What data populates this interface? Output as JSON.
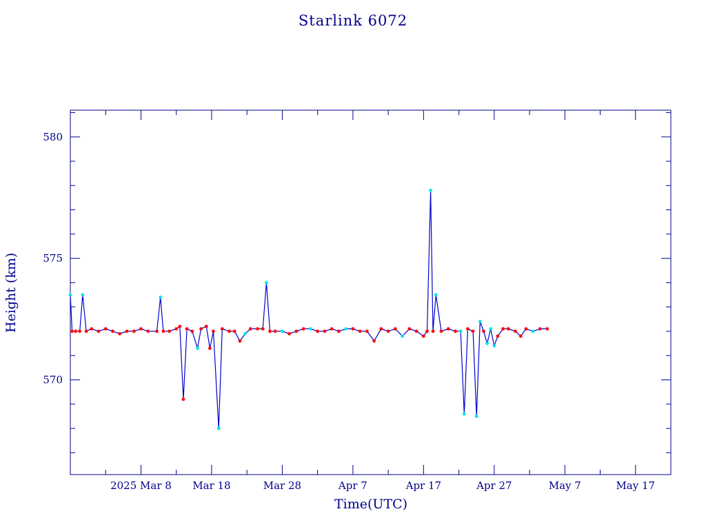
{
  "chart_data": {
    "type": "line",
    "title": "Starlink 6072",
    "xlabel": "Time(UTC)",
    "ylabel": "Height (km)",
    "x_tick_labels": [
      "2025 Mar  8",
      "Mar 18",
      "Mar 28",
      "Apr  7",
      "Apr 17",
      "Apr 27",
      "May  7",
      "May 17"
    ],
    "x_tick_dates": [
      "2025-03-08",
      "2025-03-18",
      "2025-03-28",
      "2025-04-07",
      "2025-04-17",
      "2025-04-27",
      "2025-05-07",
      "2025-05-17"
    ],
    "xlim": [
      "2025-02-26",
      "2025-05-22"
    ],
    "y_ticks": [
      570,
      575,
      580
    ],
    "ylim": [
      566.1,
      581.1
    ],
    "grid": false,
    "colors": {
      "axes": "#00008b",
      "line": "#0000cd",
      "marker_a": "#ff0000",
      "marker_b": "#00e5e5"
    },
    "series": [
      {
        "points": [
          [
            "2025-02-26T00:00",
            573.5,
            "b"
          ],
          [
            "2025-02-26T06:00",
            572.0,
            "a"
          ],
          [
            "2025-02-26T18:00",
            572.0,
            "a"
          ],
          [
            "2025-02-27T08:00",
            572.0,
            "a"
          ],
          [
            "2025-02-27T18:00",
            573.5,
            "b"
          ],
          [
            "2025-02-28T06:00",
            572.0,
            "a"
          ],
          [
            "2025-03-01T00:00",
            572.1,
            "a"
          ],
          [
            "2025-03-02T00:00",
            572.0,
            "a"
          ],
          [
            "2025-03-03T00:00",
            572.1,
            "a"
          ],
          [
            "2025-03-04T00:00",
            572.0,
            "a"
          ],
          [
            "2025-03-05T00:00",
            571.9,
            "a"
          ],
          [
            "2025-03-06T00:00",
            572.0,
            "a"
          ],
          [
            "2025-03-07T00:00",
            572.0,
            "a"
          ],
          [
            "2025-03-08T00:00",
            572.1,
            "a"
          ],
          [
            "2025-03-09T00:00",
            572.0,
            "a"
          ],
          [
            "2025-03-10T06:00",
            572.0,
            "a"
          ],
          [
            "2025-03-10T18:00",
            573.4,
            "b"
          ],
          [
            "2025-03-11T04:00",
            572.0,
            "a"
          ],
          [
            "2025-03-12T00:00",
            572.0,
            "a"
          ],
          [
            "2025-03-13T00:00",
            572.1,
            "a"
          ],
          [
            "2025-03-13T12:00",
            572.2,
            "a"
          ],
          [
            "2025-03-14T00:00",
            569.2,
            "a"
          ],
          [
            "2025-03-14T12:00",
            572.1,
            "a"
          ],
          [
            "2025-03-15T06:00",
            572.0,
            "a"
          ],
          [
            "2025-03-16T00:00",
            571.3,
            "b"
          ],
          [
            "2025-03-16T12:00",
            572.1,
            "a"
          ],
          [
            "2025-03-17T06:00",
            572.2,
            "a"
          ],
          [
            "2025-03-17T18:00",
            571.3,
            "a"
          ],
          [
            "2025-03-18T06:00",
            572.0,
            "a"
          ],
          [
            "2025-03-19T00:00",
            568.0,
            "b"
          ],
          [
            "2025-03-19T12:00",
            572.1,
            "a"
          ],
          [
            "2025-03-20T12:00",
            572.0,
            "a"
          ],
          [
            "2025-03-21T06:00",
            572.0,
            "a"
          ],
          [
            "2025-03-22T00:00",
            571.6,
            "a"
          ],
          [
            "2025-03-22T18:00",
            571.9,
            "b"
          ],
          [
            "2025-03-23T12:00",
            572.1,
            "a"
          ],
          [
            "2025-03-24T12:00",
            572.1,
            "a"
          ],
          [
            "2025-03-25T06:00",
            572.1,
            "a"
          ],
          [
            "2025-03-25T18:00",
            574.0,
            "b"
          ],
          [
            "2025-03-26T06:00",
            572.0,
            "a"
          ],
          [
            "2025-03-27T00:00",
            572.0,
            "a"
          ],
          [
            "2025-03-28T00:00",
            572.0,
            "b"
          ],
          [
            "2025-03-29T00:00",
            571.9,
            "a"
          ],
          [
            "2025-03-30T00:00",
            572.0,
            "a"
          ],
          [
            "2025-03-31T00:00",
            572.1,
            "a"
          ],
          [
            "2025-04-01T00:00",
            572.1,
            "b"
          ],
          [
            "2025-04-02T00:00",
            572.0,
            "a"
          ],
          [
            "2025-04-03T00:00",
            572.0,
            "a"
          ],
          [
            "2025-04-04T00:00",
            572.1,
            "a"
          ],
          [
            "2025-04-05T00:00",
            572.0,
            "a"
          ],
          [
            "2025-04-06T00:00",
            572.1,
            "b"
          ],
          [
            "2025-04-07T00:00",
            572.1,
            "a"
          ],
          [
            "2025-04-08T00:00",
            572.0,
            "a"
          ],
          [
            "2025-04-09T00:00",
            572.0,
            "a"
          ],
          [
            "2025-04-10T00:00",
            571.6,
            "a"
          ],
          [
            "2025-04-11T00:00",
            572.1,
            "a"
          ],
          [
            "2025-04-12T00:00",
            572.0,
            "a"
          ],
          [
            "2025-04-13T00:00",
            572.1,
            "a"
          ],
          [
            "2025-04-14T00:00",
            571.8,
            "b"
          ],
          [
            "2025-04-15T00:00",
            572.1,
            "a"
          ],
          [
            "2025-04-16T00:00",
            572.0,
            "a"
          ],
          [
            "2025-04-17T00:00",
            571.8,
            "a"
          ],
          [
            "2025-04-17T12:00",
            572.0,
            "a"
          ],
          [
            "2025-04-18T00:00",
            577.8,
            "b"
          ],
          [
            "2025-04-18T08:00",
            572.0,
            "a"
          ],
          [
            "2025-04-18T18:00",
            573.5,
            "b"
          ],
          [
            "2025-04-19T12:00",
            572.0,
            "a"
          ],
          [
            "2025-04-20T12:00",
            572.1,
            "a"
          ],
          [
            "2025-04-21T12:00",
            572.0,
            "a"
          ],
          [
            "2025-04-22T06:00",
            572.0,
            "b"
          ],
          [
            "2025-04-22T18:00",
            568.6,
            "b"
          ],
          [
            "2025-04-23T06:00",
            572.1,
            "a"
          ],
          [
            "2025-04-24T00:00",
            572.0,
            "a"
          ],
          [
            "2025-04-24T12:00",
            568.5,
            "b"
          ],
          [
            "2025-04-25T00:00",
            572.4,
            "b"
          ],
          [
            "2025-04-25T12:00",
            572.0,
            "a"
          ],
          [
            "2025-04-26T00:00",
            571.5,
            "b"
          ],
          [
            "2025-04-26T12:00",
            572.1,
            "b"
          ],
          [
            "2025-04-27T00:00",
            571.4,
            "b"
          ],
          [
            "2025-04-27T12:00",
            571.8,
            "a"
          ],
          [
            "2025-04-28T06:00",
            572.1,
            "a"
          ],
          [
            "2025-04-29T00:00",
            572.1,
            "a"
          ],
          [
            "2025-04-30T00:00",
            572.0,
            "a"
          ],
          [
            "2025-04-30T18:00",
            571.8,
            "a"
          ],
          [
            "2025-05-01T12:00",
            572.1,
            "a"
          ],
          [
            "2025-05-02T12:00",
            572.0,
            "b"
          ],
          [
            "2025-05-03T12:00",
            572.1,
            "a"
          ],
          [
            "2025-05-04T12:00",
            572.1,
            "a"
          ]
        ]
      }
    ]
  }
}
